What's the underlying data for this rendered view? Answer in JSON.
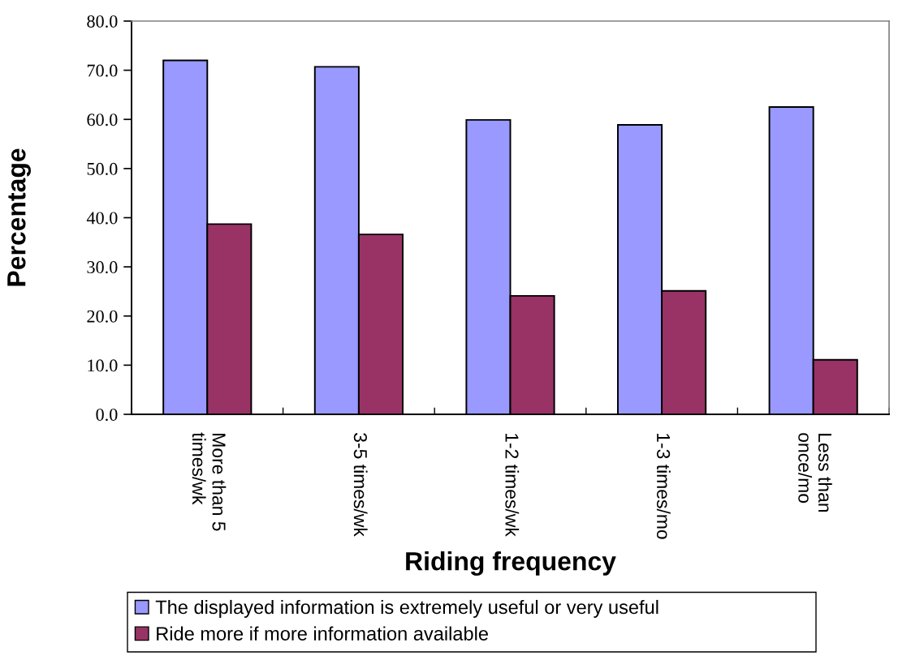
{
  "chart_data": {
    "type": "bar",
    "xlabel": "Riding frequency",
    "ylabel": "Percentage",
    "categories": [
      "More than 5\ntimes/wk",
      "3-5 times/wk",
      "1-2 times/wk",
      "1-3 times/mo",
      "Less than\nonce/mo"
    ],
    "series": [
      {
        "name": "The displayed information is extremely useful or very useful",
        "color": "#9999ff",
        "values": [
          72.0,
          70.7,
          59.9,
          58.9,
          62.5
        ]
      },
      {
        "name": "Ride more if more information available",
        "color": "#993366",
        "values": [
          38.7,
          36.6,
          24.1,
          25.1,
          11.1
        ]
      }
    ],
    "ylim": [
      0,
      80
    ],
    "yticks": [
      {
        "value": 0,
        "label": "0.0"
      },
      {
        "value": 10,
        "label": "10.0"
      },
      {
        "value": 20,
        "label": "20.0"
      },
      {
        "value": 30,
        "label": "30.0"
      },
      {
        "value": 40,
        "label": "40.0"
      },
      {
        "value": 50,
        "label": "50.0"
      },
      {
        "value": 60,
        "label": "60.0"
      },
      {
        "value": 70,
        "label": "70.0"
      },
      {
        "value": 80,
        "label": "80.0"
      }
    ],
    "grid": false,
    "legend": "bottom"
  }
}
